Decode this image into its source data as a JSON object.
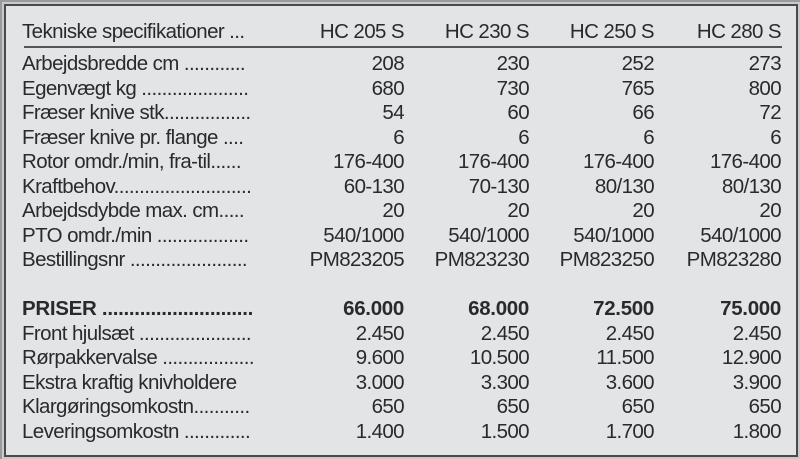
{
  "header": {
    "label": "Tekniske specifikationer ...",
    "models": [
      "HC 205 S",
      "HC 230 S",
      "HC 250 S",
      "HC 280 S"
    ]
  },
  "specs": [
    {
      "label": "Arbejdsbredde cm ............",
      "values": [
        "208",
        "230",
        "252",
        "273"
      ]
    },
    {
      "label": "Egenvægt kg .....................",
      "values": [
        "680",
        "730",
        "765",
        "800"
      ]
    },
    {
      "label": "Fræser knive stk.................",
      "values": [
        "54",
        "60",
        "66",
        "72"
      ]
    },
    {
      "label": "Fræser knive pr. flange ....",
      "values": [
        "6",
        "6",
        "6",
        "6"
      ]
    },
    {
      "label": "Rotor omdr./min, fra-til......",
      "values": [
        "176-400",
        "176-400",
        "176-400",
        "176-400"
      ]
    },
    {
      "label": "Kraftbehov...........................",
      "values": [
        "60-130",
        "70-130",
        "80/130",
        "80/130"
      ]
    },
    {
      "label": "Arbejdsdybde max. cm.....",
      "values": [
        "20",
        "20",
        "20",
        "20"
      ]
    },
    {
      "label": "PTO omdr./min ..................",
      "values": [
        "540/1000",
        "540/1000",
        "540/1000",
        "540/1000"
      ]
    },
    {
      "label": "Bestillingsnr .......................",
      "values": [
        "PM823205",
        "PM823230",
        "PM823250",
        "PM823280"
      ]
    }
  ],
  "prices": [
    {
      "label": "PRISER ............................",
      "values": [
        "66.000",
        "68.000",
        "72.500",
        "75.000"
      ],
      "bold": true
    },
    {
      "label": "Front hjulsæt ......................",
      "values": [
        "2.450",
        "2.450",
        "2.450",
        "2.450"
      ]
    },
    {
      "label": "Rørpakkervalse ..................",
      "values": [
        "9.600",
        "10.500",
        "11.500",
        "12.900"
      ]
    },
    {
      "label": "Ekstra kraftig knivholdere",
      "values": [
        "3.000",
        "3.300",
        "3.600",
        "3.900"
      ]
    },
    {
      "label": "Klargøringsomkostn...........",
      "values": [
        "650",
        "650",
        "650",
        "650"
      ]
    },
    {
      "label": "Leveringsomkostn .............",
      "values": [
        "1.400",
        "1.500",
        "1.700",
        "1.800"
      ]
    }
  ]
}
